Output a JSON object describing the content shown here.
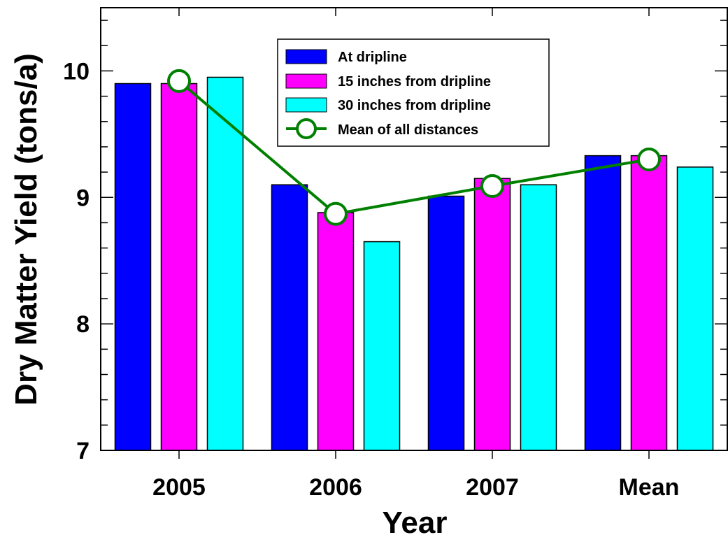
{
  "chart_data": {
    "type": "bar",
    "title": "",
    "xlabel": "Year",
    "ylabel": "Dry Matter Yield (tons/a)",
    "ylim": [
      7,
      10.5
    ],
    "yticks": [
      "7",
      "8",
      "9",
      "10"
    ],
    "categories": [
      "2005",
      "2006",
      "2007",
      "Mean"
    ],
    "grid": false,
    "legend_position": "top-center",
    "series": [
      {
        "name": "At dripline",
        "kind": "bar",
        "color": "#0000FF",
        "values": [
          9.9,
          9.1,
          9.01,
          9.33
        ]
      },
      {
        "name": "15 inches from dripline",
        "kind": "bar",
        "color": "#FF00FF",
        "values": [
          9.9,
          8.88,
          9.15,
          9.33
        ]
      },
      {
        "name": "30 inches from dripline",
        "kind": "bar",
        "color": "#00FFFF",
        "values": [
          9.95,
          8.65,
          9.1,
          9.24
        ]
      },
      {
        "name": "Mean of all distances",
        "kind": "line",
        "color": "#008000",
        "values": [
          9.92,
          8.87,
          9.09,
          9.3
        ]
      }
    ]
  }
}
